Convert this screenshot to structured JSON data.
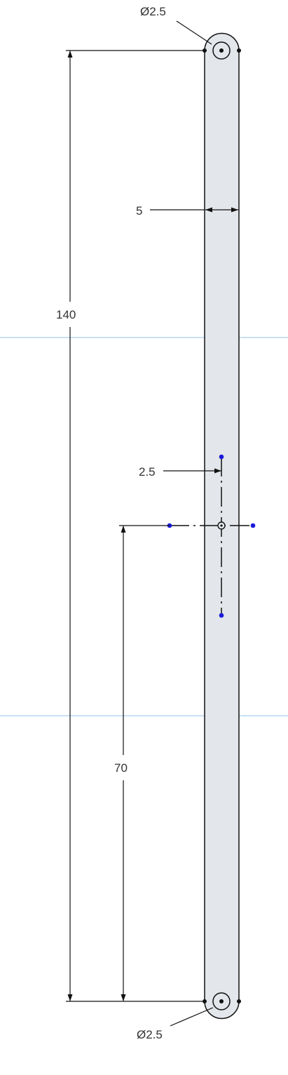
{
  "sketch": {
    "dimensions": {
      "top_hole_diameter": "Ø2.5",
      "bottom_hole_diameter": "Ø2.5",
      "width": "5",
      "length": "140",
      "center_offset": "2.5",
      "center_height": "70"
    },
    "colors": {
      "background": "#ffffff",
      "body_fill": "#e3e6ea",
      "line": "#111111",
      "construction_line": "#a8cff0",
      "constraint_point": "#1a1adb"
    }
  }
}
